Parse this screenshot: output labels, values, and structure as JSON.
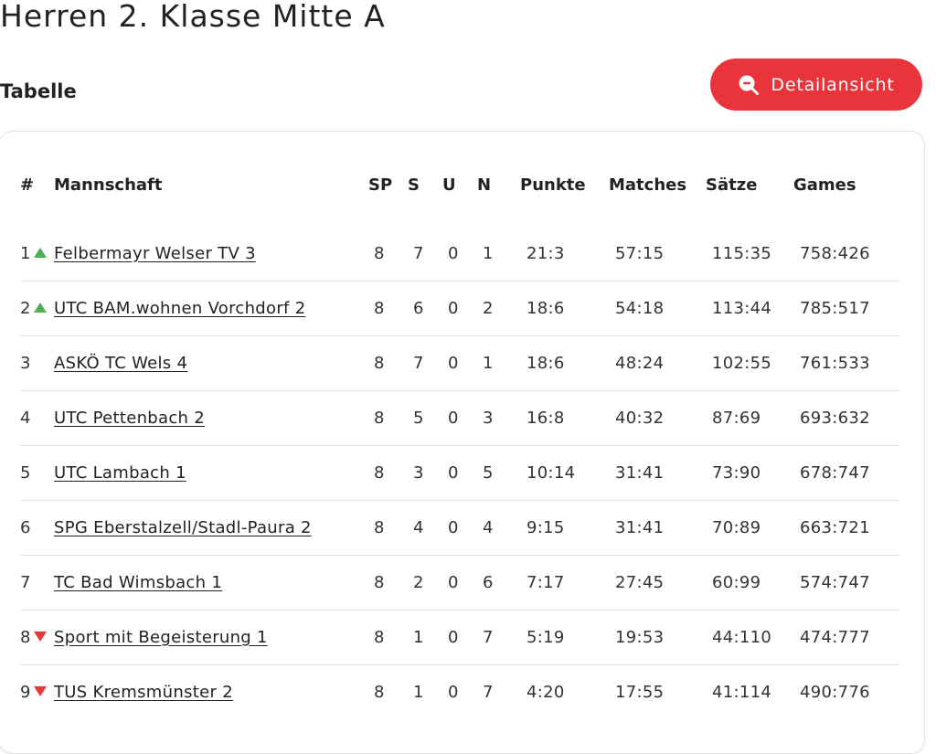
{
  "page": {
    "title": "Herren 2. Klasse Mitte A"
  },
  "section": {
    "title": "Tabelle"
  },
  "detail_button": {
    "label": "Detailansicht",
    "icon": "zoom-out-icon"
  },
  "table": {
    "headers": {
      "rank": "#",
      "team": "Mannschaft",
      "sp": "SP",
      "s": "S",
      "u": "U",
      "n": "N",
      "punkte": "Punkte",
      "matches": "Matches",
      "saetze": "Sätze",
      "games": "Games"
    },
    "colors": {
      "up": "#4caf50",
      "down": "#e53935",
      "accent": "#e9343c"
    },
    "rows": [
      {
        "rank": "1",
        "trend": "up",
        "team": "Felbermayr Welser TV 3",
        "sp": "8",
        "s": "7",
        "u": "0",
        "n": "1",
        "punkte": "21:3",
        "matches": "57:15",
        "saetze": "115:35",
        "games": "758:426"
      },
      {
        "rank": "2",
        "trend": "up",
        "team": "UTC BAM.wohnen Vorchdorf 2",
        "sp": "8",
        "s": "6",
        "u": "0",
        "n": "2",
        "punkte": "18:6",
        "matches": "54:18",
        "saetze": "113:44",
        "games": "785:517"
      },
      {
        "rank": "3",
        "trend": "none",
        "team": "ASKÖ TC Wels 4",
        "sp": "8",
        "s": "7",
        "u": "0",
        "n": "1",
        "punkte": "18:6",
        "matches": "48:24",
        "saetze": "102:55",
        "games": "761:533"
      },
      {
        "rank": "4",
        "trend": "none",
        "team": "UTC Pettenbach 2",
        "sp": "8",
        "s": "5",
        "u": "0",
        "n": "3",
        "punkte": "16:8",
        "matches": "40:32",
        "saetze": "87:69",
        "games": "693:632"
      },
      {
        "rank": "5",
        "trend": "none",
        "team": "UTC Lambach 1",
        "sp": "8",
        "s": "3",
        "u": "0",
        "n": "5",
        "punkte": "10:14",
        "matches": "31:41",
        "saetze": "73:90",
        "games": "678:747"
      },
      {
        "rank": "6",
        "trend": "none",
        "team": "SPG Eberstalzell/Stadl-Paura 2",
        "sp": "8",
        "s": "4",
        "u": "0",
        "n": "4",
        "punkte": "9:15",
        "matches": "31:41",
        "saetze": "70:89",
        "games": "663:721"
      },
      {
        "rank": "7",
        "trend": "none",
        "team": "TC Bad Wimsbach 1",
        "sp": "8",
        "s": "2",
        "u": "0",
        "n": "6",
        "punkte": "7:17",
        "matches": "27:45",
        "saetze": "60:99",
        "games": "574:747"
      },
      {
        "rank": "8",
        "trend": "down",
        "team": "Sport mit Begeisterung 1",
        "sp": "8",
        "s": "1",
        "u": "0",
        "n": "7",
        "punkte": "5:19",
        "matches": "19:53",
        "saetze": "44:110",
        "games": "474:777"
      },
      {
        "rank": "9",
        "trend": "down",
        "team": "TUS Kremsmünster 2",
        "sp": "8",
        "s": "1",
        "u": "0",
        "n": "7",
        "punkte": "4:20",
        "matches": "17:55",
        "saetze": "41:114",
        "games": "490:776"
      }
    ]
  }
}
